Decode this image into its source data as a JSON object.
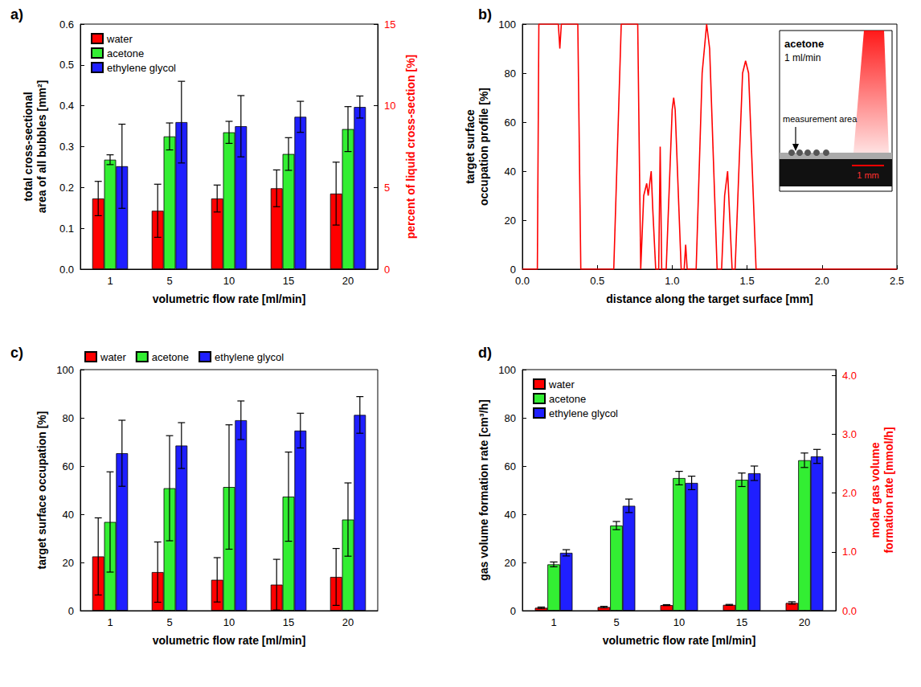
{
  "chart_data": [
    {
      "type": "bar",
      "title": "a)",
      "x_label": "volumetric flow rate [ml/min]",
      "y_label": "total cross-sectional area of all bubbles [mm²]",
      "y2_label": "percent of liquid cross-section [%]",
      "categories": [
        "1",
        "5",
        "10",
        "15",
        "20"
      ],
      "series": [
        {
          "name": "water",
          "color": "#ff0000",
          "values": [
            0.173,
            0.143,
            0.173,
            0.198,
            0.185
          ],
          "errors": [
            0.042,
            0.065,
            0.033,
            0.045,
            0.077
          ]
        },
        {
          "name": "acetone",
          "color": "#33ee33",
          "values": [
            0.268,
            0.325,
            0.335,
            0.282,
            0.343
          ],
          "errors": [
            0.012,
            0.033,
            0.027,
            0.04,
            0.055
          ]
        },
        {
          "name": "ethylene glycol",
          "color": "#1f1fff",
          "values": [
            0.252,
            0.36,
            0.35,
            0.373,
            0.397
          ],
          "errors": [
            0.103,
            0.1,
            0.075,
            0.038,
            0.027
          ]
        }
      ],
      "ylim": [
        0,
        0.6
      ],
      "yticks": [
        {
          "value": 0,
          "label": "0.0"
        },
        0.1,
        0.2,
        0.3,
        0.4,
        0.5,
        0.6
      ],
      "y2lim": [
        0,
        15
      ],
      "y2ticks": [
        0,
        5,
        10,
        15
      ],
      "grid": false,
      "legend": "upper left"
    },
    {
      "type": "line",
      "title": "b)",
      "x_label": "distance along the target surface [mm]",
      "y_label": "target surface occupation profile [%]",
      "x": [
        0,
        0.1,
        0.11,
        0.24,
        0.25,
        0.26,
        0.37,
        0.39,
        0.61,
        0.66,
        0.77,
        0.79,
        0.81,
        0.83,
        0.84,
        0.86,
        0.87,
        0.89,
        0.91,
        0.92,
        0.93,
        0.96,
        1.0,
        1.01,
        1.02,
        1.06,
        1.08,
        1.09,
        1.1,
        1.16,
        1.2,
        1.23,
        1.25,
        1.3,
        1.33,
        1.35,
        1.37,
        1.4,
        1.42,
        1.47,
        1.49,
        1.51,
        1.56,
        2.5
      ],
      "values": [
        0,
        0,
        100,
        100,
        90,
        100,
        100,
        0,
        0,
        100,
        100,
        0,
        30,
        35,
        30,
        40,
        25,
        0,
        0,
        50,
        0,
        0,
        65,
        70,
        65,
        0,
        0,
        10,
        0,
        0,
        80,
        100,
        90,
        0,
        0,
        30,
        40,
        0,
        0,
        80,
        85,
        80,
        0,
        0
      ],
      "color": "#ff0000",
      "xlim": [
        0,
        2.5
      ],
      "xticks": [
        {
          "value": 0,
          "label": "0.0"
        },
        0.5,
        {
          "value": 1,
          "label": "1.0"
        },
        1.5,
        {
          "value": 2,
          "label": "2.0"
        },
        2.5
      ],
      "ylim": [
        0,
        100
      ],
      "yticks": [
        0,
        20,
        40,
        60,
        80,
        100
      ],
      "grid": false,
      "annotations": [
        "acetone",
        "1 ml/min",
        "measurement area",
        "1 mm"
      ]
    },
    {
      "type": "bar",
      "title": "c)",
      "x_label": "volumetric flow rate [ml/min]",
      "y_label": "target surface occupation [%]",
      "categories": [
        "1",
        "5",
        "10",
        "15",
        "20"
      ],
      "series": [
        {
          "name": "water",
          "color": "#ff0000",
          "values": [
            22.5,
            16,
            12.8,
            10.8,
            14
          ],
          "errors": [
            16,
            12.5,
            9.2,
            10.5,
            11.8
          ]
        },
        {
          "name": "acetone",
          "color": "#33ee33",
          "values": [
            36.8,
            50.8,
            51.3,
            47.3,
            37.8
          ],
          "errors": [
            20.8,
            21.8,
            25.8,
            18.5,
            15.2
          ]
        },
        {
          "name": "ethylene glycol",
          "color": "#1f1fff",
          "values": [
            65.3,
            68.5,
            79,
            74.7,
            81.2
          ],
          "errors": [
            13.7,
            9.5,
            8,
            7.2,
            7.6
          ]
        }
      ],
      "ylim": [
        0,
        100
      ],
      "yticks": [
        0,
        20,
        40,
        60,
        80,
        100
      ],
      "grid": false,
      "legend": "top"
    },
    {
      "type": "bar",
      "title": "d)",
      "x_label": "volumetric flow rate [ml/min]",
      "y_label": "gas volume formation rate [cm³/h]",
      "y2_label": "molar gas volume formation rate [mmol/h]",
      "categories": [
        "1",
        "5",
        "10",
        "15",
        "20"
      ],
      "series": [
        {
          "name": "water",
          "color": "#ff0000",
          "values": [
            1.2,
            1.5,
            2.3,
            2.4,
            3.2
          ],
          "errors": [
            0.3,
            0.3,
            0.2,
            0.2,
            0.5
          ]
        },
        {
          "name": "acetone",
          "color": "#33ee33",
          "values": [
            19.2,
            35.3,
            55,
            54.3,
            62.4
          ],
          "errors": [
            1,
            1.7,
            2.8,
            2.8,
            3
          ]
        },
        {
          "name": "ethylene glycol",
          "color": "#1f1fff",
          "values": [
            24,
            43.5,
            53,
            57,
            64
          ],
          "errors": [
            1.3,
            2.8,
            2.8,
            3,
            2.9
          ]
        }
      ],
      "ylim": [
        0,
        100
      ],
      "yticks": [
        0,
        20,
        40,
        60,
        80,
        100
      ],
      "y2lim": [
        0,
        4.1
      ],
      "y2ticks": [
        {
          "value": 0,
          "label": "0.0"
        },
        {
          "value": 1,
          "label": "1.0"
        },
        {
          "value": 2,
          "label": "2.0"
        },
        {
          "value": 3,
          "label": "3.0"
        },
        {
          "value": 4,
          "label": "4.0"
        }
      ],
      "grid": false,
      "legend": "upper left"
    }
  ]
}
